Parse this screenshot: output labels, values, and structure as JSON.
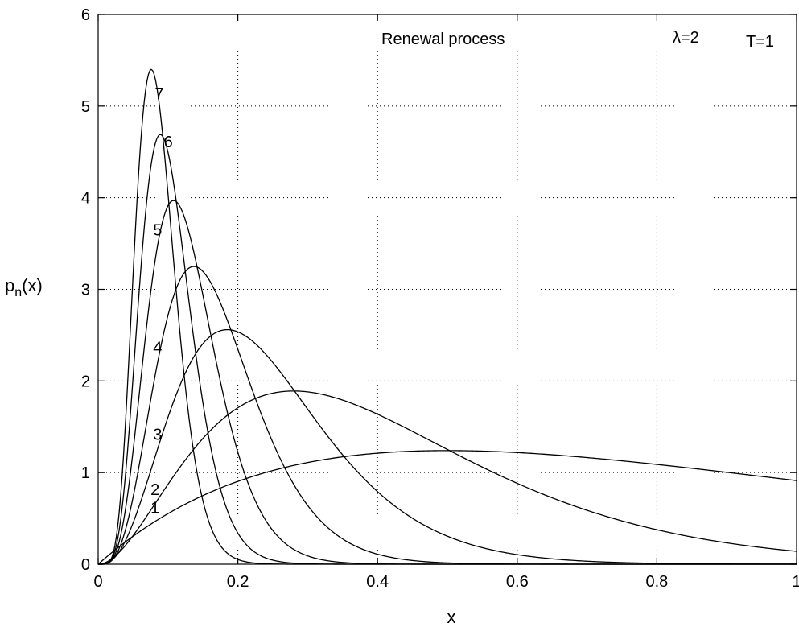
{
  "chart_data": {
    "type": "line",
    "title": "",
    "xlabel": "x",
    "ylabel": "p",
    "ylabel_sub": "n",
    "ylabel_suffix": "(x)",
    "xlim": [
      0,
      1
    ],
    "ylim": [
      0,
      6
    ],
    "grid": true,
    "x_ticks": [
      0,
      0.2,
      0.4,
      0.6,
      0.8,
      1
    ],
    "x_tick_labels": [
      "0",
      "0.2",
      "0.4",
      "0.6",
      "0.8",
      "1"
    ],
    "y_ticks": [
      0,
      1,
      2,
      3,
      4,
      5,
      6
    ],
    "y_tick_labels": [
      "0",
      "1",
      "2",
      "3",
      "4",
      "5",
      "6"
    ],
    "annotations": {
      "process": "Renewal process",
      "lambda": "λ=2",
      "T": "T=1"
    },
    "series": [
      {
        "name": "1",
        "peak": [
          0.5,
          1.24
        ],
        "x": [
          0,
          0.1,
          0.2,
          0.3,
          0.4,
          0.5,
          0.6,
          0.7,
          0.8,
          0.9,
          1.0
        ],
        "y": [
          0,
          0.45,
          0.8,
          1.04,
          1.19,
          1.24,
          1.21,
          1.15,
          1.07,
          0.99,
          0.91
        ]
      },
      {
        "name": "2",
        "peak": [
          0.28,
          1.89
        ],
        "x": [
          0,
          0.1,
          0.2,
          0.28,
          0.4,
          0.5,
          0.6,
          0.7,
          0.8,
          0.9,
          1.0
        ],
        "y": [
          0,
          1.2,
          1.76,
          1.89,
          1.69,
          1.3,
          0.84,
          0.44,
          0.16,
          0.03,
          0
        ]
      },
      {
        "name": "3",
        "peak": [
          0.185,
          2.56
        ],
        "x": [
          0,
          0.1,
          0.185,
          0.3,
          0.4,
          0.5,
          0.6,
          0.7,
          0.8,
          0.9,
          1.0
        ],
        "y": [
          0,
          2.1,
          2.56,
          2.06,
          1.29,
          0.69,
          0.31,
          0.11,
          0.03,
          0.004,
          0
        ]
      },
      {
        "name": "4",
        "peak": [
          0.137,
          3.25
        ],
        "x": [
          0,
          0.137,
          0.2,
          0.3,
          0.4,
          0.5,
          0.6,
          0.7,
          0.8,
          0.9,
          1.0
        ],
        "y": [
          0,
          3.25,
          2.92,
          1.79,
          0.88,
          0.34,
          0.1,
          0.02,
          0.003,
          0,
          0
        ]
      },
      {
        "name": "5",
        "peak": [
          0.108,
          3.97
        ],
        "x": [
          0,
          0.108,
          0.2,
          0.3,
          0.4,
          0.5,
          0.6,
          0.7,
          0.8,
          0.9,
          1.0
        ],
        "y": [
          0,
          3.97,
          2.84,
          1.27,
          0.42,
          0.1,
          0.02,
          0.002,
          0,
          0,
          0
        ]
      },
      {
        "name": "6",
        "peak": [
          0.089,
          4.69
        ],
        "x": [
          0,
          0.089,
          0.2,
          0.3,
          0.4,
          0.5,
          0.6,
          0.7,
          0.8,
          0.9,
          1.0
        ],
        "y": [
          0,
          4.69,
          2.59,
          0.84,
          0.19,
          0.03,
          0.004,
          0,
          0,
          0,
          0
        ]
      },
      {
        "name": "7",
        "peak": [
          0.076,
          5.4
        ],
        "x": [
          0,
          0.076,
          0.2,
          0.3,
          0.4,
          0.5,
          0.6,
          0.7,
          0.8,
          0.9,
          1.0
        ],
        "y": [
          0,
          5.4,
          2.25,
          0.53,
          0.08,
          0.01,
          0,
          0,
          0,
          0,
          0
        ]
      }
    ]
  }
}
